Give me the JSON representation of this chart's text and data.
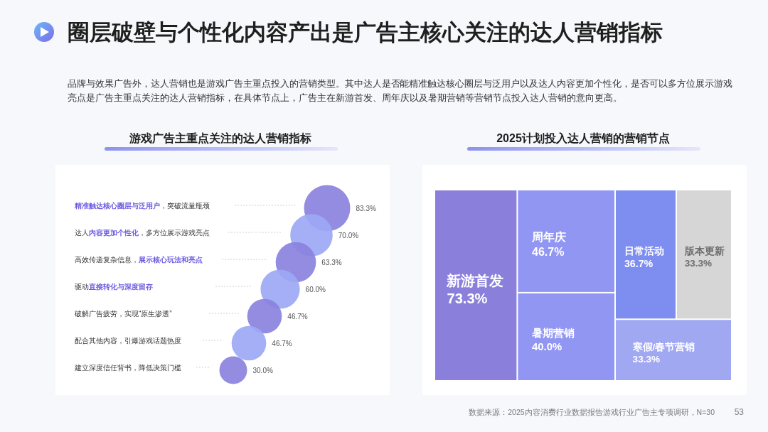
{
  "chart_data": [
    {
      "type": "other",
      "title": "圈层破壁与个性化内容产出是广告主核心关注的达人营销指标",
      "subtitle": "品牌与效果广告外，达人营销也是游戏广告主重点投入的营销类型。其中达人是否能精准触达核心圈层与泛用户以及达人内容更加个性化，是否可以多方位展示游戏亮点是广告主重点关注的达人营销指标，在具体节点上，广告主在新游首发、周年庆以及暑期营销等营销节点投入达人营销的意向更高。",
      "annotations": [
        "数据来源：2025内容消费行业数据报告游戏行业广告主专项调研，N=30",
        "53"
      ]
    },
    {
      "type": "other",
      "title": "游戏广告主重点关注的达人营销指标",
      "categories": [
        "**精准触达核心圈层与泛用户**，突破流量瓶颈",
        "达人**内容更加个性化**，多方位展示游戏亮点",
        "高效传递复杂信息，**展示核心玩法和亮点**",
        "驱动**直接转化与深度留存**",
        "破解广告疲劳，实现“原生渗透”",
        "配合其他内容，引爆游戏话题热度",
        "建立深度信任背书，降低决策门槛"
      ],
      "values": [
        83.3,
        70.0,
        63.3,
        60.0,
        46.7,
        46.7,
        30.0
      ],
      "value_labels": [
        "83.3%",
        "70.0%",
        "63.3%",
        "60.0%",
        "46.7%",
        "46.7%",
        "30.0%"
      ],
      "colors": [
        "#8b82de",
        "#9ca8f4",
        "#8b82de",
        "#9ca8f4",
        "#8b82de",
        "#9ca8f4",
        "#8b82de"
      ]
    },
    {
      "type": "other",
      "title": "2025计划投入达人营销的营销节点",
      "categories": [
        "新游首发",
        "周年庆",
        "暑期营销",
        "日常活动",
        "版本更新",
        "寒假/春节营销"
      ],
      "values": [
        73.3,
        46.7,
        40.0,
        36.7,
        33.3,
        33.3
      ],
      "value_labels": [
        "73.3%",
        "46.7%",
        "40.0%",
        "36.7%",
        "33.3%",
        "33.3%"
      ],
      "colors": [
        "#8a80dc",
        "#9196f3",
        "#9196f3",
        "#7e8ef0",
        "#d6d6d6",
        "#a0a8f2"
      ]
    }
  ]
}
